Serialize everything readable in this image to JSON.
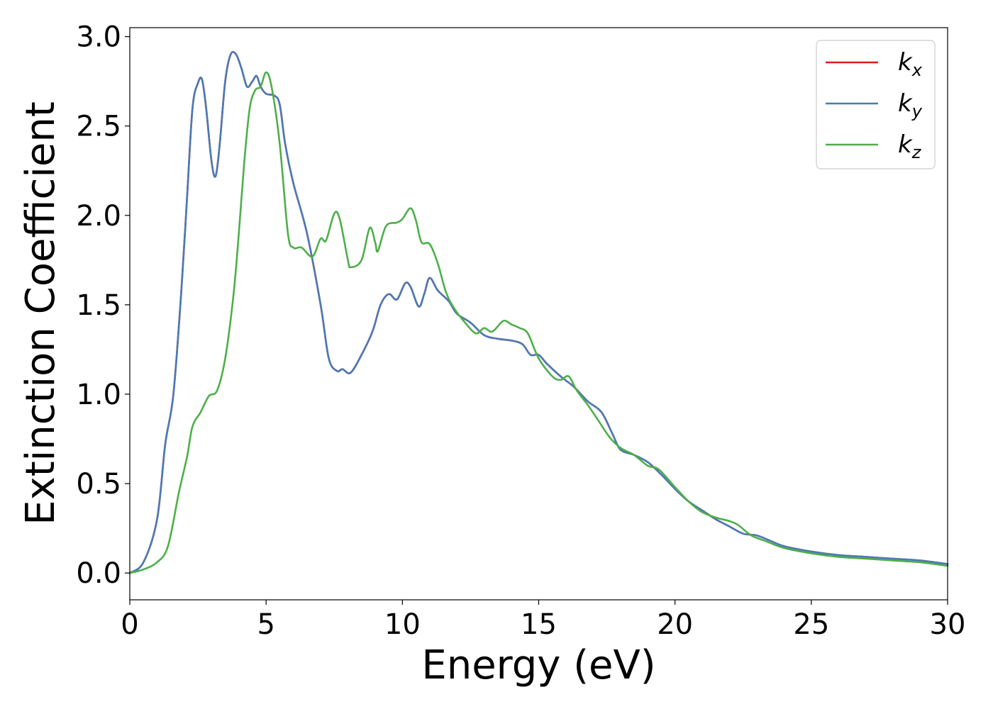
{
  "chart_data": {
    "type": "line",
    "title": "",
    "xlabel": "Energy (eV)",
    "ylabel": "Extinction Coefficient",
    "xlim": [
      0,
      30
    ],
    "ylim": [
      -0.15,
      3.05
    ],
    "xticks": [
      0,
      5,
      10,
      15,
      20,
      25,
      30
    ],
    "yticks": [
      0.0,
      0.5,
      1.0,
      1.5,
      2.0,
      2.5,
      3.0
    ],
    "xtick_labels": [
      "0",
      "5",
      "10",
      "15",
      "20",
      "25",
      "30"
    ],
    "ytick_labels": [
      "0.0",
      "0.5",
      "1.0",
      "1.5",
      "2.0",
      "2.5",
      "3.0"
    ],
    "grid": false,
    "legend_position": "top-right",
    "series": [
      {
        "name": "k",
        "subscript": "x",
        "color": "#e41a1c",
        "points": [
          [
            0,
            0
          ],
          [
            0.5,
            0.06
          ],
          [
            1.0,
            0.3
          ],
          [
            1.3,
            0.72
          ],
          [
            1.6,
            1.0
          ],
          [
            1.9,
            1.6
          ],
          [
            2.1,
            2.1
          ],
          [
            2.3,
            2.6
          ],
          [
            2.5,
            2.74
          ],
          [
            2.65,
            2.76
          ],
          [
            2.8,
            2.6
          ],
          [
            3.0,
            2.3
          ],
          [
            3.15,
            2.22
          ],
          [
            3.3,
            2.4
          ],
          [
            3.5,
            2.75
          ],
          [
            3.7,
            2.9
          ],
          [
            3.9,
            2.9
          ],
          [
            4.1,
            2.82
          ],
          [
            4.3,
            2.72
          ],
          [
            4.5,
            2.75
          ],
          [
            4.65,
            2.78
          ],
          [
            4.8,
            2.72
          ],
          [
            5.0,
            2.68
          ],
          [
            5.3,
            2.67
          ],
          [
            5.5,
            2.62
          ],
          [
            5.7,
            2.4
          ],
          [
            6.0,
            2.18
          ],
          [
            6.5,
            1.9
          ],
          [
            7.0,
            1.5
          ],
          [
            7.3,
            1.2
          ],
          [
            7.6,
            1.13
          ],
          [
            7.8,
            1.14
          ],
          [
            8.1,
            1.12
          ],
          [
            8.5,
            1.22
          ],
          [
            8.9,
            1.35
          ],
          [
            9.2,
            1.5
          ],
          [
            9.5,
            1.56
          ],
          [
            9.8,
            1.53
          ],
          [
            10.1,
            1.62
          ],
          [
            10.3,
            1.6
          ],
          [
            10.6,
            1.49
          ],
          [
            10.8,
            1.56
          ],
          [
            11.0,
            1.65
          ],
          [
            11.3,
            1.58
          ],
          [
            11.7,
            1.52
          ],
          [
            12.0,
            1.45
          ],
          [
            12.5,
            1.4
          ],
          [
            13.0,
            1.33
          ],
          [
            13.5,
            1.31
          ],
          [
            14.0,
            1.3
          ],
          [
            14.4,
            1.28
          ],
          [
            14.7,
            1.22
          ],
          [
            15.0,
            1.22
          ],
          [
            15.3,
            1.17
          ],
          [
            15.8,
            1.1
          ],
          [
            16.3,
            1.04
          ],
          [
            16.8,
            0.96
          ],
          [
            17.3,
            0.9
          ],
          [
            17.7,
            0.78
          ],
          [
            18.0,
            0.69
          ],
          [
            18.5,
            0.66
          ],
          [
            19.0,
            0.62
          ],
          [
            19.5,
            0.55
          ],
          [
            20.0,
            0.47
          ],
          [
            20.5,
            0.4
          ],
          [
            21.0,
            0.35
          ],
          [
            21.5,
            0.3
          ],
          [
            22.0,
            0.26
          ],
          [
            22.5,
            0.22
          ],
          [
            23.0,
            0.21
          ],
          [
            23.5,
            0.18
          ],
          [
            24.0,
            0.15
          ],
          [
            25.0,
            0.12
          ],
          [
            26.0,
            0.1
          ],
          [
            27.0,
            0.09
          ],
          [
            28.0,
            0.08
          ],
          [
            29.0,
            0.07
          ],
          [
            30.0,
            0.05
          ]
        ]
      },
      {
        "name": "k",
        "subscript": "y",
        "color": "#4a7bb7",
        "points": [
          [
            0,
            0
          ],
          [
            0.5,
            0.06
          ],
          [
            1.0,
            0.3
          ],
          [
            1.3,
            0.72
          ],
          [
            1.6,
            1.0
          ],
          [
            1.9,
            1.6
          ],
          [
            2.1,
            2.1
          ],
          [
            2.3,
            2.6
          ],
          [
            2.5,
            2.74
          ],
          [
            2.65,
            2.76
          ],
          [
            2.8,
            2.6
          ],
          [
            3.0,
            2.3
          ],
          [
            3.15,
            2.22
          ],
          [
            3.3,
            2.4
          ],
          [
            3.5,
            2.75
          ],
          [
            3.7,
            2.9
          ],
          [
            3.9,
            2.9
          ],
          [
            4.1,
            2.82
          ],
          [
            4.3,
            2.72
          ],
          [
            4.5,
            2.75
          ],
          [
            4.65,
            2.78
          ],
          [
            4.8,
            2.72
          ],
          [
            5.0,
            2.68
          ],
          [
            5.3,
            2.67
          ],
          [
            5.5,
            2.62
          ],
          [
            5.7,
            2.4
          ],
          [
            6.0,
            2.18
          ],
          [
            6.5,
            1.9
          ],
          [
            7.0,
            1.5
          ],
          [
            7.3,
            1.2
          ],
          [
            7.6,
            1.13
          ],
          [
            7.8,
            1.14
          ],
          [
            8.1,
            1.12
          ],
          [
            8.5,
            1.22
          ],
          [
            8.9,
            1.35
          ],
          [
            9.2,
            1.5
          ],
          [
            9.5,
            1.56
          ],
          [
            9.8,
            1.53
          ],
          [
            10.1,
            1.62
          ],
          [
            10.3,
            1.6
          ],
          [
            10.6,
            1.49
          ],
          [
            10.8,
            1.56
          ],
          [
            11.0,
            1.65
          ],
          [
            11.3,
            1.58
          ],
          [
            11.7,
            1.52
          ],
          [
            12.0,
            1.45
          ],
          [
            12.5,
            1.4
          ],
          [
            13.0,
            1.33
          ],
          [
            13.5,
            1.31
          ],
          [
            14.0,
            1.3
          ],
          [
            14.4,
            1.28
          ],
          [
            14.7,
            1.22
          ],
          [
            15.0,
            1.22
          ],
          [
            15.3,
            1.17
          ],
          [
            15.8,
            1.1
          ],
          [
            16.3,
            1.04
          ],
          [
            16.8,
            0.96
          ],
          [
            17.3,
            0.9
          ],
          [
            17.7,
            0.78
          ],
          [
            18.0,
            0.69
          ],
          [
            18.5,
            0.66
          ],
          [
            19.0,
            0.62
          ],
          [
            19.5,
            0.55
          ],
          [
            20.0,
            0.47
          ],
          [
            20.5,
            0.4
          ],
          [
            21.0,
            0.35
          ],
          [
            21.5,
            0.3
          ],
          [
            22.0,
            0.26
          ],
          [
            22.5,
            0.22
          ],
          [
            23.0,
            0.21
          ],
          [
            23.5,
            0.18
          ],
          [
            24.0,
            0.15
          ],
          [
            25.0,
            0.12
          ],
          [
            26.0,
            0.1
          ],
          [
            27.0,
            0.09
          ],
          [
            28.0,
            0.08
          ],
          [
            29.0,
            0.07
          ],
          [
            30.0,
            0.05
          ]
        ]
      },
      {
        "name": "k",
        "subscript": "z",
        "color": "#4daf4a",
        "points": [
          [
            0,
            0
          ],
          [
            0.5,
            0.02
          ],
          [
            1.0,
            0.06
          ],
          [
            1.4,
            0.15
          ],
          [
            1.8,
            0.45
          ],
          [
            2.1,
            0.65
          ],
          [
            2.3,
            0.82
          ],
          [
            2.6,
            0.9
          ],
          [
            2.9,
            0.99
          ],
          [
            3.2,
            1.02
          ],
          [
            3.5,
            1.2
          ],
          [
            3.8,
            1.55
          ],
          [
            4.0,
            1.9
          ],
          [
            4.2,
            2.3
          ],
          [
            4.4,
            2.6
          ],
          [
            4.6,
            2.7
          ],
          [
            4.8,
            2.72
          ],
          [
            5.0,
            2.8
          ],
          [
            5.2,
            2.72
          ],
          [
            5.5,
            2.4
          ],
          [
            5.8,
            1.9
          ],
          [
            6.0,
            1.82
          ],
          [
            6.3,
            1.82
          ],
          [
            6.7,
            1.77
          ],
          [
            7.0,
            1.87
          ],
          [
            7.2,
            1.86
          ],
          [
            7.5,
            2.01
          ],
          [
            7.7,
            1.98
          ],
          [
            8.0,
            1.75
          ],
          [
            8.1,
            1.71
          ],
          [
            8.5,
            1.75
          ],
          [
            8.8,
            1.93
          ],
          [
            9.0,
            1.85
          ],
          [
            9.1,
            1.8
          ],
          [
            9.4,
            1.94
          ],
          [
            9.8,
            1.96
          ],
          [
            10.0,
            1.98
          ],
          [
            10.3,
            2.04
          ],
          [
            10.5,
            1.97
          ],
          [
            10.7,
            1.85
          ],
          [
            11.0,
            1.84
          ],
          [
            11.3,
            1.73
          ],
          [
            11.6,
            1.57
          ],
          [
            11.9,
            1.48
          ],
          [
            12.3,
            1.4
          ],
          [
            12.7,
            1.34
          ],
          [
            13.0,
            1.37
          ],
          [
            13.3,
            1.35
          ],
          [
            13.7,
            1.41
          ],
          [
            14.0,
            1.39
          ],
          [
            14.3,
            1.37
          ],
          [
            14.6,
            1.34
          ],
          [
            15.0,
            1.2
          ],
          [
            15.5,
            1.1
          ],
          [
            15.8,
            1.08
          ],
          [
            16.1,
            1.1
          ],
          [
            16.4,
            1.02
          ],
          [
            16.8,
            0.94
          ],
          [
            17.2,
            0.85
          ],
          [
            17.6,
            0.76
          ],
          [
            18.0,
            0.7
          ],
          [
            18.5,
            0.66
          ],
          [
            19.0,
            0.6
          ],
          [
            19.4,
            0.58
          ],
          [
            20.0,
            0.48
          ],
          [
            20.5,
            0.4
          ],
          [
            21.0,
            0.34
          ],
          [
            21.5,
            0.31
          ],
          [
            22.0,
            0.29
          ],
          [
            22.3,
            0.27
          ],
          [
            22.8,
            0.21
          ],
          [
            23.3,
            0.18
          ],
          [
            24.0,
            0.14
          ],
          [
            25.0,
            0.11
          ],
          [
            26.0,
            0.09
          ],
          [
            27.0,
            0.08
          ],
          [
            28.0,
            0.07
          ],
          [
            29.0,
            0.06
          ],
          [
            30.0,
            0.04
          ]
        ]
      }
    ]
  }
}
